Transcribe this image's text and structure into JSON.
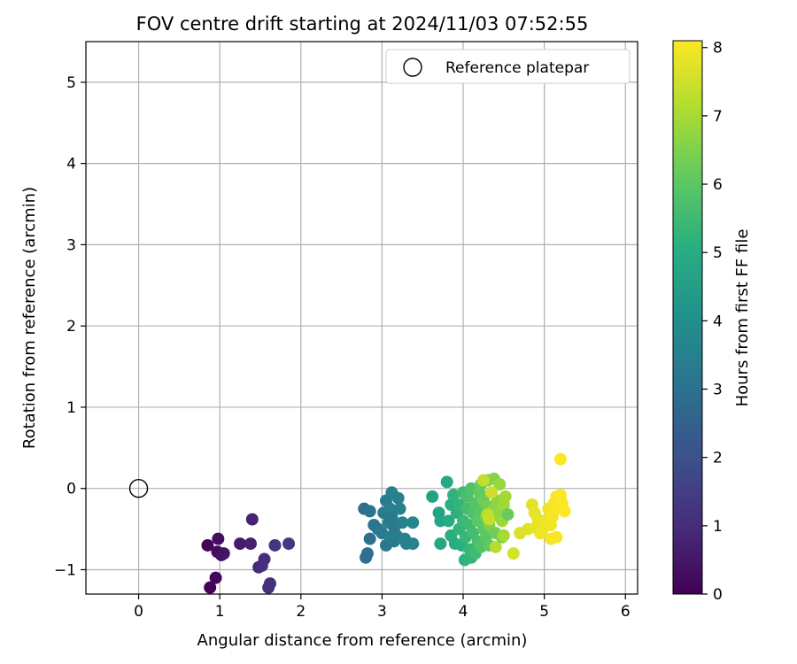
{
  "chart_data": {
    "type": "scatter",
    "title": "FOV centre drift starting at 2024/11/03 07:52:55",
    "xlabel": "Angular distance from reference (arcmin)",
    "ylabel": "Rotation from reference (arcmin)",
    "xlim": [
      -0.65,
      6.15
    ],
    "ylim": [
      -1.3,
      5.5
    ],
    "xticks": [
      0,
      1,
      2,
      3,
      4,
      5,
      6
    ],
    "xtick_labels": [
      "0",
      "1",
      "2",
      "3",
      "4",
      "5",
      "6"
    ],
    "yticks": [
      -1,
      0,
      1,
      2,
      3,
      4,
      5
    ],
    "ytick_labels": [
      "−1",
      "0",
      "1",
      "2",
      "3",
      "4",
      "5"
    ],
    "grid": true,
    "legend": {
      "placement": "upper right",
      "entries": [
        "Reference platepar"
      ]
    },
    "reference_point": {
      "name": "Reference platepar",
      "x": 0,
      "y": 0,
      "marker": "open circle"
    },
    "colorbar": {
      "label": "Hours from first FF file",
      "colormap": "viridis",
      "range": [
        0,
        8.1
      ],
      "ticks": [
        0,
        1,
        2,
        3,
        4,
        5,
        6,
        7,
        8
      ],
      "tick_labels": [
        "0",
        "1",
        "2",
        "3",
        "4",
        "5",
        "6",
        "7",
        "8"
      ]
    },
    "points": [
      {
        "x": 0.85,
        "y": -0.7,
        "h": 0.1
      },
      {
        "x": 0.88,
        "y": -1.22,
        "h": 0.05
      },
      {
        "x": 0.95,
        "y": -1.1,
        "h": 0.15
      },
      {
        "x": 0.97,
        "y": -0.78,
        "h": 0.2
      },
      {
        "x": 0.98,
        "y": -0.62,
        "h": 0.3
      },
      {
        "x": 1.02,
        "y": -0.82,
        "h": 0.4
      },
      {
        "x": 1.05,
        "y": -0.8,
        "h": 0.45
      },
      {
        "x": 1.25,
        "y": -0.68,
        "h": 0.6
      },
      {
        "x": 1.38,
        "y": -0.68,
        "h": 0.7
      },
      {
        "x": 1.4,
        "y": -0.38,
        "h": 0.8
      },
      {
        "x": 1.48,
        "y": -0.97,
        "h": 0.9
      },
      {
        "x": 1.55,
        "y": -0.87,
        "h": 1.0
      },
      {
        "x": 1.52,
        "y": -0.95,
        "h": 1.05
      },
      {
        "x": 1.6,
        "y": -1.22,
        "h": 1.1
      },
      {
        "x": 1.62,
        "y": -1.17,
        "h": 1.15
      },
      {
        "x": 1.68,
        "y": -0.7,
        "h": 1.2
      },
      {
        "x": 1.85,
        "y": -0.68,
        "h": 1.3
      },
      {
        "x": 2.78,
        "y": -0.25,
        "h": 2.9
      },
      {
        "x": 2.8,
        "y": -0.85,
        "h": 2.95
      },
      {
        "x": 2.82,
        "y": -0.8,
        "h": 3.0
      },
      {
        "x": 2.85,
        "y": -0.62,
        "h": 3.05
      },
      {
        "x": 2.85,
        "y": -0.28,
        "h": 3.1
      },
      {
        "x": 2.9,
        "y": -0.45,
        "h": 3.15
      },
      {
        "x": 2.95,
        "y": -0.5,
        "h": 3.2
      },
      {
        "x": 3.0,
        "y": -0.55,
        "h": 3.25
      },
      {
        "x": 3.02,
        "y": -0.3,
        "h": 3.3
      },
      {
        "x": 3.05,
        "y": -0.15,
        "h": 3.35
      },
      {
        "x": 3.05,
        "y": -0.7,
        "h": 3.2
      },
      {
        "x": 3.08,
        "y": -0.42,
        "h": 3.4
      },
      {
        "x": 3.1,
        "y": -0.6,
        "h": 3.45
      },
      {
        "x": 3.1,
        "y": -0.25,
        "h": 3.5
      },
      {
        "x": 3.12,
        "y": -0.05,
        "h": 3.55
      },
      {
        "x": 3.12,
        "y": -0.35,
        "h": 3.3
      },
      {
        "x": 3.15,
        "y": -0.48,
        "h": 3.25
      },
      {
        "x": 3.15,
        "y": -0.65,
        "h": 3.35
      },
      {
        "x": 3.18,
        "y": -0.58,
        "h": 3.4
      },
      {
        "x": 3.2,
        "y": -0.12,
        "h": 3.45
      },
      {
        "x": 3.22,
        "y": -0.25,
        "h": 3.5
      },
      {
        "x": 3.25,
        "y": -0.42,
        "h": 3.55
      },
      {
        "x": 3.28,
        "y": -0.62,
        "h": 3.6
      },
      {
        "x": 3.3,
        "y": -0.68,
        "h": 3.5
      },
      {
        "x": 3.38,
        "y": -0.42,
        "h": 3.65
      },
      {
        "x": 3.38,
        "y": -0.68,
        "h": 3.6
      },
      {
        "x": 3.62,
        "y": -0.1,
        "h": 4.6
      },
      {
        "x": 3.7,
        "y": -0.3,
        "h": 4.7
      },
      {
        "x": 3.72,
        "y": -0.4,
        "h": 4.75
      },
      {
        "x": 3.72,
        "y": -0.68,
        "h": 4.8
      },
      {
        "x": 3.8,
        "y": 0.08,
        "h": 4.9
      },
      {
        "x": 3.82,
        "y": -0.4,
        "h": 5.0
      },
      {
        "x": 3.85,
        "y": -0.58,
        "h": 5.05
      },
      {
        "x": 3.85,
        "y": -0.2,
        "h": 5.1
      },
      {
        "x": 3.88,
        "y": -0.08,
        "h": 5.2
      },
      {
        "x": 3.9,
        "y": -0.68,
        "h": 5.0
      },
      {
        "x": 3.92,
        "y": -0.3,
        "h": 5.15
      },
      {
        "x": 3.95,
        "y": -0.5,
        "h": 5.25
      },
      {
        "x": 3.95,
        "y": -0.2,
        "h": 5.3
      },
      {
        "x": 3.98,
        "y": -0.7,
        "h": 5.1
      },
      {
        "x": 4.0,
        "y": -0.4,
        "h": 5.4
      },
      {
        "x": 4.0,
        "y": -0.05,
        "h": 5.5
      },
      {
        "x": 4.02,
        "y": -0.88,
        "h": 5.2
      },
      {
        "x": 4.03,
        "y": -0.6,
        "h": 5.35
      },
      {
        "x": 4.05,
        "y": -0.25,
        "h": 5.6
      },
      {
        "x": 4.05,
        "y": -0.1,
        "h": 5.7
      },
      {
        "x": 4.08,
        "y": -0.45,
        "h": 5.5
      },
      {
        "x": 4.08,
        "y": -0.75,
        "h": 5.4
      },
      {
        "x": 4.1,
        "y": 0.0,
        "h": 5.8
      },
      {
        "x": 4.1,
        "y": -0.85,
        "h": 5.3
      },
      {
        "x": 4.12,
        "y": -0.3,
        "h": 5.75
      },
      {
        "x": 4.12,
        "y": -0.55,
        "h": 5.6
      },
      {
        "x": 4.15,
        "y": -0.18,
        "h": 5.9
      },
      {
        "x": 4.15,
        "y": -0.8,
        "h": 5.5
      },
      {
        "x": 4.18,
        "y": -0.4,
        "h": 6.0
      },
      {
        "x": 4.18,
        "y": -0.65,
        "h": 5.7
      },
      {
        "x": 4.2,
        "y": -0.05,
        "h": 6.1
      },
      {
        "x": 4.2,
        "y": -0.28,
        "h": 5.95
      },
      {
        "x": 4.22,
        "y": -0.72,
        "h": 5.85
      },
      {
        "x": 4.22,
        "y": 0.05,
        "h": 6.2
      },
      {
        "x": 4.25,
        "y": -0.5,
        "h": 6.05
      },
      {
        "x": 4.25,
        "y": -0.15,
        "h": 6.25
      },
      {
        "x": 4.28,
        "y": -0.35,
        "h": 6.3
      },
      {
        "x": 4.28,
        "y": -0.6,
        "h": 6.0
      },
      {
        "x": 4.3,
        "y": 0.1,
        "h": 6.4
      },
      {
        "x": 4.3,
        "y": -0.22,
        "h": 6.35
      },
      {
        "x": 4.32,
        "y": -0.7,
        "h": 6.1
      },
      {
        "x": 4.32,
        "y": -0.45,
        "h": 6.45
      },
      {
        "x": 4.35,
        "y": -0.05,
        "h": 6.5
      },
      {
        "x": 4.35,
        "y": -0.35,
        "h": 6.55
      },
      {
        "x": 4.38,
        "y": 0.12,
        "h": 6.6
      },
      {
        "x": 4.38,
        "y": -0.25,
        "h": 6.65
      },
      {
        "x": 4.4,
        "y": -0.55,
        "h": 6.3
      },
      {
        "x": 4.4,
        "y": -0.72,
        "h": 7.2
      },
      {
        "x": 4.42,
        "y": -0.15,
        "h": 6.7
      },
      {
        "x": 4.45,
        "y": -0.3,
        "h": 6.75
      },
      {
        "x": 4.45,
        "y": 0.05,
        "h": 6.8
      },
      {
        "x": 4.48,
        "y": -0.6,
        "h": 6.4
      },
      {
        "x": 4.48,
        "y": -0.4,
        "h": 6.85
      },
      {
        "x": 4.5,
        "y": -0.2,
        "h": 6.9
      },
      {
        "x": 4.52,
        "y": -0.1,
        "h": 6.95
      },
      {
        "x": 4.55,
        "y": -0.32,
        "h": 6.2
      },
      {
        "x": 4.3,
        "y": -0.32,
        "h": 7.3
      },
      {
        "x": 4.32,
        "y": -0.38,
        "h": 7.4
      },
      {
        "x": 4.35,
        "y": -0.05,
        "h": 7.5
      },
      {
        "x": 4.25,
        "y": 0.1,
        "h": 7.35
      },
      {
        "x": 4.5,
        "y": -0.58,
        "h": 7.0
      },
      {
        "x": 4.62,
        "y": -0.8,
        "h": 7.6
      },
      {
        "x": 4.7,
        "y": -0.55,
        "h": 7.65
      },
      {
        "x": 4.8,
        "y": -0.5,
        "h": 7.7
      },
      {
        "x": 4.85,
        "y": -0.2,
        "h": 7.75
      },
      {
        "x": 4.88,
        "y": -0.3,
        "h": 7.8
      },
      {
        "x": 4.9,
        "y": -0.48,
        "h": 7.82
      },
      {
        "x": 4.92,
        "y": -0.38,
        "h": 7.85
      },
      {
        "x": 4.95,
        "y": -0.55,
        "h": 7.88
      },
      {
        "x": 4.98,
        "y": -0.5,
        "h": 7.9
      },
      {
        "x": 5.02,
        "y": -0.4,
        "h": 7.92
      },
      {
        "x": 5.05,
        "y": -0.25,
        "h": 7.94
      },
      {
        "x": 5.08,
        "y": -0.45,
        "h": 7.96
      },
      {
        "x": 5.08,
        "y": -0.62,
        "h": 7.98
      },
      {
        "x": 5.1,
        "y": -0.35,
        "h": 8.0
      },
      {
        "x": 5.12,
        "y": -0.18,
        "h": 8.02
      },
      {
        "x": 5.15,
        "y": -0.1,
        "h": 8.04
      },
      {
        "x": 5.15,
        "y": -0.6,
        "h": 8.05
      },
      {
        "x": 5.18,
        "y": -0.25,
        "h": 8.06
      },
      {
        "x": 5.2,
        "y": -0.08,
        "h": 8.07
      },
      {
        "x": 5.22,
        "y": -0.18,
        "h": 8.08
      },
      {
        "x": 5.25,
        "y": -0.28,
        "h": 8.09
      },
      {
        "x": 5.2,
        "y": 0.36,
        "h": 8.1
      }
    ]
  }
}
